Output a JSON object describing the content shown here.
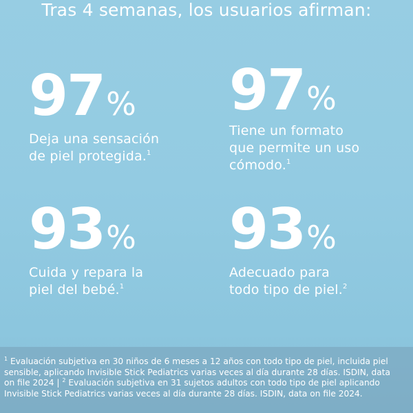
{
  "headline": "Tras 4 semanas, los usuarios afirman:",
  "stats": [
    {
      "number": "97",
      "unit": "%",
      "lines": [
        "Deja una sensación",
        "de piel protegida."
      ],
      "footnote_ref": "1"
    },
    {
      "number": "97",
      "unit": "%",
      "lines": [
        "Tiene un formato",
        "que permite un uso",
        "cómodo."
      ],
      "footnote_ref": "1"
    },
    {
      "number": "93",
      "unit": "%",
      "lines": [
        "Cuida y repara la",
        "piel del bebé."
      ],
      "footnote_ref": "1"
    },
    {
      "number": "93",
      "unit": "%",
      "lines": [
        "Adecuado para",
        "todo tipo de piel."
      ],
      "footnote_ref": "2"
    }
  ],
  "footnotes": {
    "line1_ref": "1",
    "line1": " Evaluación subjetiva en 30 niños de 6 meses a 12 años con todo tipo de piel, incluida piel",
    "line2": "sensible, aplicando Invisible Stick Pediatrics varias veces al día durante 28 días. ISDIN, data",
    "line3a": "on file 2024 | ",
    "line3_ref": "2",
    "line3b": " Evaluación subjetiva en 31 sujetos adultos con todo tipo de piel aplicando",
    "line4": "Invisible Stick Pediatrics varias veces al día durante 28 días. ISDIN, data on file 2024."
  }
}
